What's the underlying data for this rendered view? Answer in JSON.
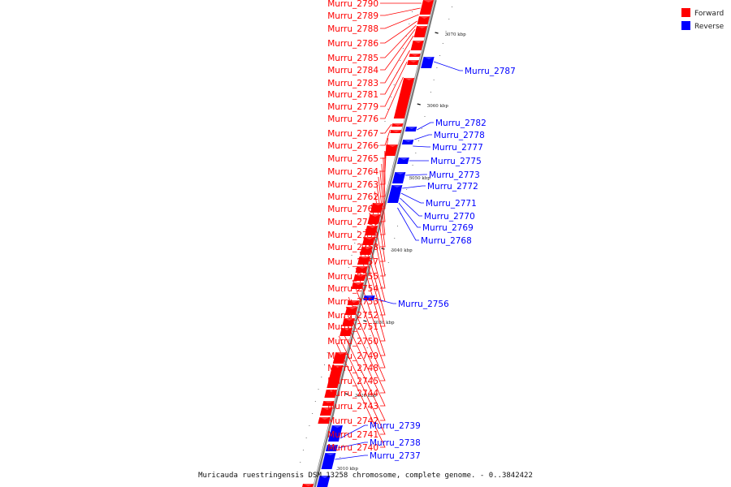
{
  "caption": "Muricauda ruestringensis DSM 13258 chromosome, complete genome. - 0..3842422",
  "colors": {
    "forward": "#ff0000",
    "reverse": "#0000ff",
    "backbone": "#999999"
  },
  "legend": [
    {
      "label": "Forward",
      "color": "#ff0000"
    },
    {
      "label": "Reverse",
      "color": "#0000ff"
    }
  ],
  "ticks": [
    "3070 kbp",
    "3060 kbp",
    "3050 kbp",
    "3040 kbp",
    "3030 kbp",
    "3020 kbp",
    "3010 kbp"
  ],
  "forward_genes": [
    "Murru_2790",
    "Murru_2789",
    "Murru_2788",
    "Murru_2786",
    "Murru_2785",
    "Murru_2784",
    "Murru_2783",
    "Murru_2781",
    "Murru_2779",
    "Murru_2776",
    "Murru_2767",
    "Murru_2766",
    "Murru_2765",
    "Murru_2764",
    "Murru_2763",
    "Murru_2762",
    "Murru_2761",
    "Murru_2760",
    "Murru_2759",
    "Murru_2758",
    "Murru_2757",
    "Murru_2755",
    "Murru_2754",
    "Murru_2753",
    "Murru_2752",
    "Murru_2751",
    "Murru_2750",
    "Murru_2749",
    "Murru_2748",
    "Murru_2745",
    "Murru_2744",
    "Murru_2743",
    "Murru_2742",
    "Murru_2741",
    "Murru_2740"
  ],
  "reverse_genes": [
    "Murru_2787",
    "Murru_2782",
    "Murru_2778",
    "Murru_2777",
    "Murru_2775",
    "Murru_2773",
    "Murru_2772",
    "Murru_2771",
    "Murru_2770",
    "Murru_2769",
    "Murru_2768",
    "Murru_2756",
    "Murru_2739",
    "Murru_2738",
    "Murru_2737"
  ]
}
